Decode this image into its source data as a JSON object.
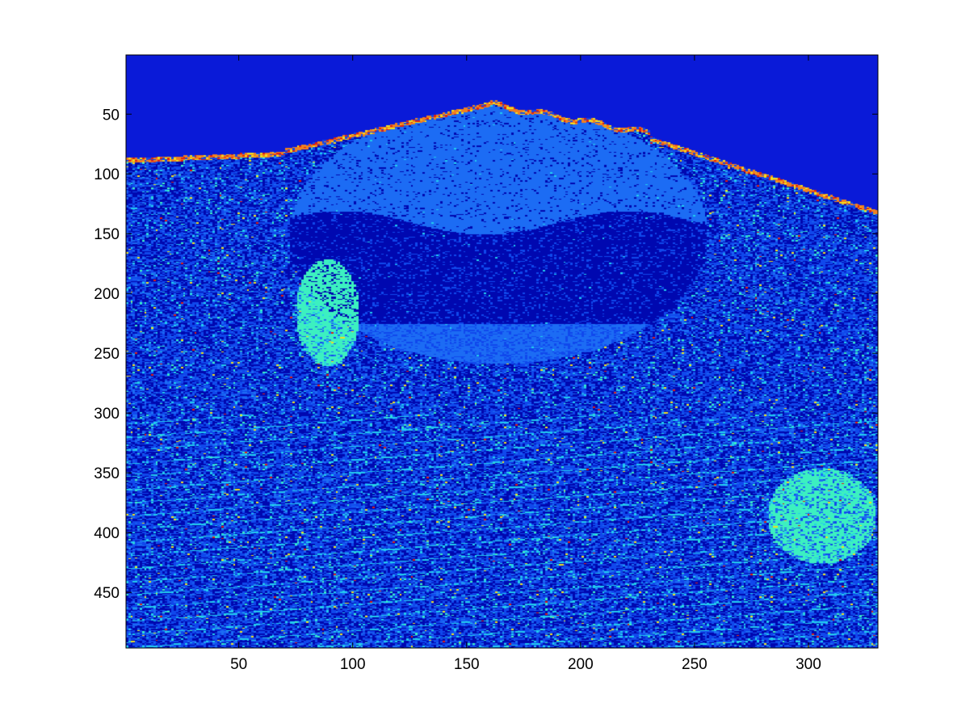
{
  "chart_data": {
    "type": "heatmap",
    "title": "",
    "xlabel": "",
    "ylabel": "",
    "xlim": [
      1,
      330
    ],
    "ylim": [
      1,
      496
    ],
    "y_direction": "reversed",
    "grid": false,
    "colormap": "jet",
    "x_ticks": [
      50,
      100,
      150,
      200,
      250,
      300
    ],
    "x_tick_labels": [
      "50",
      "100",
      "150",
      "200",
      "250",
      "300"
    ],
    "y_ticks": [
      50,
      100,
      150,
      200,
      250,
      300,
      350,
      400,
      450
    ],
    "y_tick_labels": [
      "50",
      "100",
      "150",
      "200",
      "250",
      "300",
      "350",
      "400",
      "450"
    ],
    "palette": {
      "background": "#0a1ad8",
      "dark_blue": "#0008b0",
      "mid_blue": "#1048ec",
      "light_blue": "#1c6cf4",
      "cyan": "#22ccee",
      "aqua_green": "#3cf0c0",
      "yellow": "#f0e020",
      "orange": "#f08020",
      "red": "#e02010"
    },
    "description_regions": [
      {
        "label": "sky",
        "rows": [
          1,
          85
        ],
        "level": "background"
      },
      {
        "label": "bright ridge edge",
        "rows": [
          40,
          135
        ],
        "level": "orange"
      },
      {
        "label": "dome top",
        "rows": [
          45,
          230
        ],
        "cols": [
          70,
          255
        ],
        "level": "light_blue"
      },
      {
        "label": "dome lower band",
        "rows": [
          140,
          260
        ],
        "cols": [
          70,
          255
        ],
        "level": "dark_blue"
      },
      {
        "label": "left bright patch",
        "rows": [
          170,
          260
        ],
        "cols": [
          75,
          105
        ],
        "level": "aqua_green"
      },
      {
        "label": "right bright patch",
        "rows": [
          340,
          430
        ],
        "cols": [
          280,
          330
        ],
        "level": "aqua_green"
      },
      {
        "label": "city texture",
        "rows": [
          260,
          496
        ],
        "cols": [
          40,
          310
        ],
        "level": "mid_blue"
      }
    ]
  }
}
